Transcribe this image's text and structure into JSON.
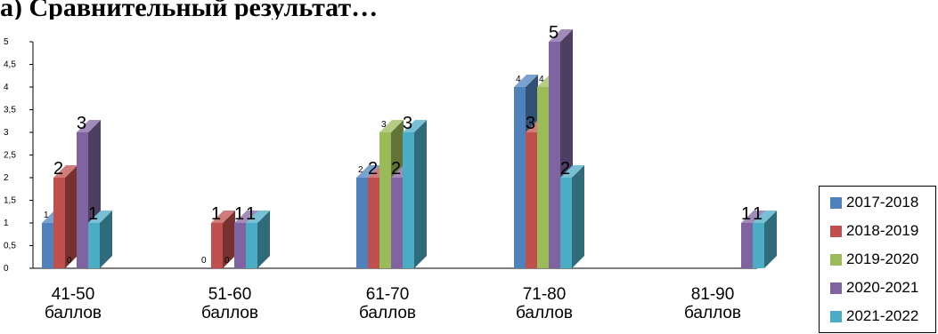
{
  "title_fragment": "а) Сравнительный результат…",
  "chart_data": {
    "type": "bar",
    "variant": "3d-clustered",
    "ylim": [
      0,
      5
    ],
    "ytick_step": 0.5,
    "ytick_labels": [
      "0",
      "0,5",
      "1",
      "1,5",
      "2",
      "2,5",
      "3",
      "3,5",
      "4",
      "4,5",
      "5"
    ],
    "categories": [
      {
        "range": "41-50",
        "unit": "баллов"
      },
      {
        "range": "51-60",
        "unit": "баллов"
      },
      {
        "range": "61-70",
        "unit": "баллов"
      },
      {
        "range": "71-80",
        "unit": "баллов"
      },
      {
        "range": "81-90",
        "unit": "баллов"
      }
    ],
    "series": [
      {
        "name": "2017-2018",
        "color": "#4F81BD",
        "values": [
          1,
          0,
          2,
          4,
          null
        ]
      },
      {
        "name": "2018-2019",
        "color": "#C0504D",
        "values": [
          2,
          1,
          2,
          3,
          null
        ]
      },
      {
        "name": "2019-2020",
        "color": "#9BBB59",
        "values": [
          0,
          0,
          3,
          4,
          null
        ]
      },
      {
        "name": "2020-2021",
        "color": "#8064A2",
        "values": [
          3,
          1,
          2,
          5,
          1
        ]
      },
      {
        "name": "2021-2022",
        "color": "#4BACC6",
        "values": [
          1,
          1,
          3,
          2,
          1
        ]
      }
    ],
    "data_labels": [
      [
        "1",
        "2",
        "0",
        "3",
        "1"
      ],
      [
        "0",
        "1",
        "0",
        "1",
        "1"
      ],
      [
        "2",
        "2",
        "3",
        "2",
        "3"
      ],
      [
        "4",
        "3",
        "4",
        "5",
        "2"
      ],
      [
        "",
        "",
        "",
        "1",
        "1"
      ]
    ],
    "legend_position": "bottom-right",
    "grid": false
  }
}
